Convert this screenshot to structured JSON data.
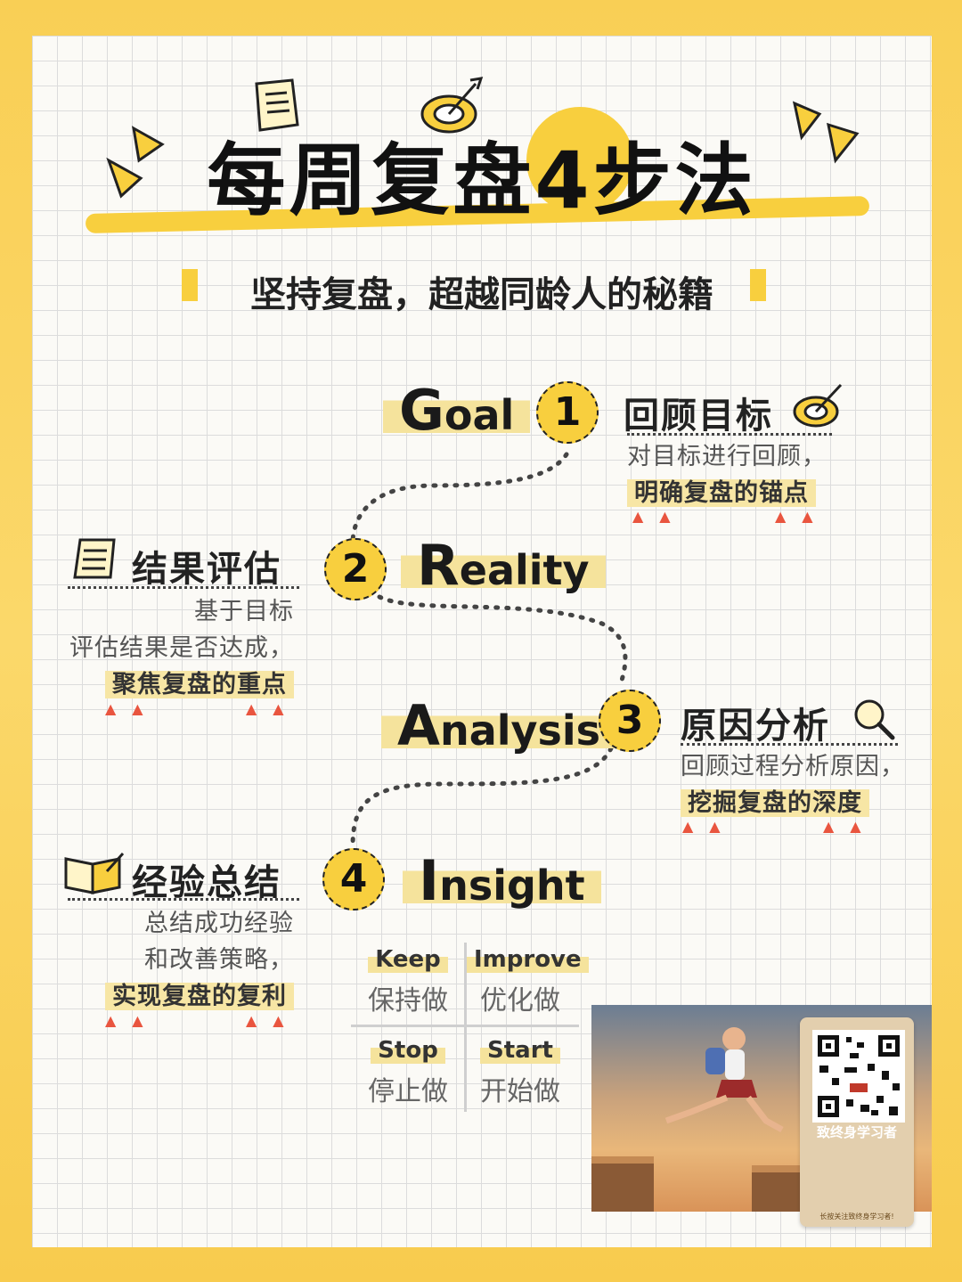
{
  "title": {
    "main": "每周复盘4步法"
  },
  "subtitle": "坚持复盘，超越同龄人的秘籍",
  "steps": [
    {
      "number": "1",
      "english_cap": "G",
      "english_rest": "oal",
      "title": "回顾目标",
      "desc_lines": [
        "对目标进行回顾，"
      ],
      "highlight": "明确复盘的锚点"
    },
    {
      "number": "2",
      "english_cap": "R",
      "english_rest": "eality",
      "title": "结果评估",
      "desc_lines": [
        "基于目标",
        "评估结果是否达成，"
      ],
      "highlight": "聚焦复盘的重点"
    },
    {
      "number": "3",
      "english_cap": "A",
      "english_rest": "nalysis",
      "title": "原因分析",
      "desc_lines": [
        "回顾过程分析原因，"
      ],
      "highlight": "挖掘复盘的深度"
    },
    {
      "number": "4",
      "english_cap": "I",
      "english_rest": "nsight",
      "title": "经验总结",
      "desc_lines": [
        "总结成功经验",
        "和改善策略，"
      ],
      "highlight": "实现复盘的复利"
    }
  ],
  "kiss": [
    {
      "en": "Keep",
      "cn": "保持做"
    },
    {
      "en": "Improve",
      "cn": "优化做"
    },
    {
      "en": "Stop",
      "cn": "停止做"
    },
    {
      "en": "Start",
      "cn": "开始做"
    }
  ],
  "ad": {
    "qr_name": "致终身学习者",
    "qr_note": "长按关注致终身学习者!"
  },
  "icons": [
    "document-icon",
    "target-icon",
    "notepad-icon",
    "magnifier-icon",
    "open-book-icon"
  ],
  "colors": {
    "accent": "#f8cf3e",
    "frame": "#f9cf55",
    "triangle": "#e9553f"
  }
}
